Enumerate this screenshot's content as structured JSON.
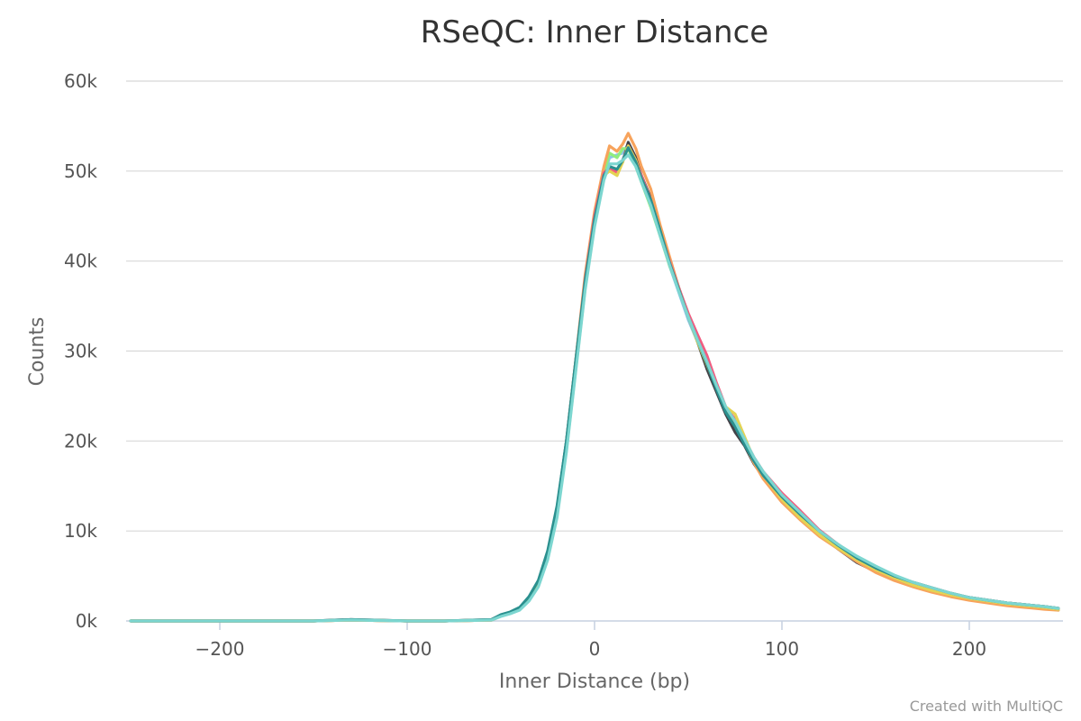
{
  "chart_data": {
    "type": "line",
    "title": "RSeQC: Inner Distance",
    "xlabel": "Inner Distance (bp)",
    "ylabel": "Counts",
    "xlim": [
      -250,
      250
    ],
    "ylim": [
      0,
      60000
    ],
    "x_ticks": [
      -200,
      -100,
      0,
      100,
      200
    ],
    "x_tick_labels": [
      "−200",
      "−100",
      "0",
      "100",
      "200"
    ],
    "y_ticks": [
      0,
      10000,
      20000,
      30000,
      40000,
      50000,
      60000
    ],
    "y_tick_labels": [
      "0k",
      "10k",
      "20k",
      "30k",
      "40k",
      "50k",
      "60k"
    ],
    "grid": true,
    "legend": "none",
    "credit": "Created with MultiQC",
    "series": [
      {
        "color": "#8cc4e8",
        "x": [
          -247.5,
          -200,
          -150,
          -130,
          -100,
          -80,
          -55,
          -50,
          -45,
          -40,
          -35,
          -30,
          -25,
          -20,
          -15,
          -10,
          -5,
          0,
          5,
          8,
          12,
          15,
          18,
          22,
          25,
          30,
          35,
          40,
          45,
          50,
          55,
          60,
          65,
          70,
          75,
          80,
          85,
          90,
          100,
          110,
          120,
          130,
          140,
          150,
          160,
          170,
          180,
          190,
          200,
          210,
          220,
          230,
          240,
          247.5
        ],
        "y": [
          0,
          0,
          0,
          100,
          0,
          0,
          100,
          600,
          900,
          1300,
          2400,
          4100,
          7200,
          12000,
          19500,
          28500,
          37500,
          44500,
          49500,
          51500,
          51800,
          52000,
          53000,
          51000,
          49000,
          46500,
          43000,
          39500,
          36500,
          33500,
          31000,
          28500,
          26000,
          23500,
          22000,
          20000,
          18000,
          16500,
          14000,
          12000,
          10000,
          8500,
          7000,
          6000,
          5000,
          4200,
          3600,
          3000,
          2500,
          2200,
          1900,
          1700,
          1500,
          1300
        ]
      },
      {
        "color": "#434348",
        "x": [
          -247.5,
          -200,
          -150,
          -130,
          -100,
          -80,
          -55,
          -50,
          -45,
          -40,
          -35,
          -30,
          -25,
          -20,
          -15,
          -10,
          -5,
          0,
          5,
          8,
          12,
          15,
          18,
          22,
          25,
          30,
          35,
          40,
          45,
          50,
          55,
          60,
          65,
          70,
          75,
          80,
          85,
          90,
          100,
          110,
          120,
          130,
          140,
          150,
          160,
          170,
          180,
          190,
          200,
          210,
          220,
          230,
          240,
          247.5
        ],
        "y": [
          0,
          0,
          0,
          150,
          0,
          0,
          150,
          650,
          950,
          1400,
          2500,
          4300,
          7500,
          12500,
          20000,
          29000,
          38000,
          45000,
          50000,
          50500,
          50000,
          51000,
          53200,
          51500,
          49500,
          47000,
          43500,
          40000,
          37000,
          34000,
          31000,
          28000,
          25500,
          23000,
          21000,
          19500,
          17500,
          16000,
          13500,
          11500,
          9800,
          8000,
          6500,
          5500,
          4800,
          4000,
          3500,
          3000,
          2600,
          2300,
          2000,
          1800,
          1600,
          1400
        ]
      },
      {
        "color": "#90ed7d",
        "x": [
          -247.5,
          -200,
          -150,
          -130,
          -100,
          -80,
          -55,
          -50,
          -45,
          -40,
          -35,
          -30,
          -25,
          -20,
          -15,
          -10,
          -5,
          0,
          5,
          8,
          12,
          15,
          18,
          22,
          25,
          30,
          35,
          40,
          45,
          50,
          55,
          60,
          65,
          70,
          75,
          80,
          85,
          90,
          100,
          110,
          120,
          130,
          140,
          150,
          160,
          170,
          180,
          190,
          200,
          210,
          220,
          230,
          240,
          247.5
        ],
        "y": [
          0,
          0,
          0,
          100,
          0,
          0,
          100,
          550,
          850,
          1250,
          2300,
          4000,
          7000,
          11800,
          19000,
          28000,
          37000,
          44000,
          49800,
          52000,
          51500,
          52500,
          52500,
          50500,
          48800,
          46000,
          42800,
          39500,
          36800,
          33800,
          31200,
          28800,
          26200,
          23600,
          22200,
          20000,
          17800,
          16200,
          13600,
          11600,
          9700,
          8200,
          6900,
          5800,
          4900,
          4100,
          3500,
          2900,
          2400,
          2100,
          1800,
          1600,
          1400,
          1200
        ]
      },
      {
        "color": "#f7a35c",
        "x": [
          -247.5,
          -200,
          -150,
          -130,
          -100,
          -80,
          -55,
          -50,
          -45,
          -40,
          -35,
          -30,
          -25,
          -20,
          -15,
          -10,
          -5,
          0,
          5,
          8,
          12,
          15,
          18,
          22,
          25,
          30,
          35,
          40,
          45,
          50,
          55,
          60,
          65,
          70,
          75,
          80,
          85,
          90,
          100,
          110,
          120,
          130,
          140,
          150,
          160,
          170,
          180,
          190,
          200,
          210,
          220,
          230,
          240,
          247.5
        ],
        "y": [
          0,
          0,
          0,
          100,
          0,
          0,
          100,
          600,
          900,
          1300,
          2400,
          4200,
          7300,
          12200,
          19800,
          29000,
          38500,
          45500,
          50500,
          52800,
          52200,
          53000,
          54200,
          52500,
          50500,
          48000,
          44000,
          40500,
          37000,
          34000,
          31500,
          29000,
          26000,
          23500,
          22000,
          19800,
          17600,
          15800,
          13200,
          11200,
          9400,
          8000,
          6600,
          5400,
          4500,
          3800,
          3200,
          2700,
          2300,
          2000,
          1700,
          1500,
          1300,
          1200
        ]
      },
      {
        "color": "#f15c80",
        "x": [
          -247.5,
          -200,
          -150,
          -130,
          -100,
          -80,
          -55,
          -50,
          -45,
          -40,
          -35,
          -30,
          -25,
          -20,
          -15,
          -10,
          -5,
          0,
          5,
          8,
          12,
          15,
          18,
          22,
          25,
          30,
          35,
          40,
          45,
          50,
          55,
          60,
          65,
          70,
          75,
          80,
          85,
          90,
          100,
          110,
          120,
          130,
          140,
          150,
          160,
          170,
          180,
          190,
          200,
          210,
          220,
          230,
          240,
          247.5
        ],
        "y": [
          0,
          0,
          0,
          100,
          0,
          0,
          100,
          600,
          900,
          1300,
          2400,
          4100,
          7200,
          12000,
          19500,
          28800,
          38000,
          45000,
          49800,
          50300,
          49800,
          51200,
          52800,
          51200,
          49500,
          46800,
          43200,
          40000,
          37000,
          34200,
          31800,
          29500,
          26500,
          23800,
          22400,
          20200,
          18200,
          16600,
          14200,
          12200,
          10100,
          8500,
          7000,
          5900,
          5000,
          4300,
          3700,
          3100,
          2600,
          2300,
          2000,
          1800,
          1600,
          1400
        ]
      },
      {
        "color": "#e4d354",
        "x": [
          -247.5,
          -200,
          -150,
          -130,
          -100,
          -80,
          -55,
          -50,
          -45,
          -40,
          -35,
          -30,
          -25,
          -20,
          -15,
          -10,
          -5,
          0,
          5,
          8,
          12,
          15,
          18,
          22,
          25,
          30,
          35,
          40,
          45,
          50,
          55,
          60,
          65,
          70,
          75,
          80,
          85,
          90,
          100,
          110,
          120,
          130,
          140,
          150,
          160,
          170,
          180,
          190,
          200,
          210,
          220,
          230,
          240,
          247.5
        ],
        "y": [
          0,
          0,
          0,
          100,
          0,
          0,
          100,
          550,
          850,
          1250,
          2300,
          4000,
          7000,
          11800,
          19200,
          28200,
          37200,
          44200,
          49500,
          50000,
          49500,
          51000,
          52800,
          51200,
          49200,
          46500,
          43000,
          39800,
          36800,
          33800,
          31000,
          28500,
          26000,
          23800,
          23000,
          20500,
          18000,
          16200,
          13500,
          11400,
          9600,
          8100,
          6800,
          5700,
          4800,
          4000,
          3400,
          2900,
          2500,
          2200,
          1900,
          1700,
          1500,
          1300
        ]
      },
      {
        "color": "#2b908f",
        "x": [
          -247.5,
          -200,
          -150,
          -130,
          -100,
          -80,
          -55,
          -50,
          -45,
          -40,
          -35,
          -30,
          -25,
          -20,
          -15,
          -10,
          -5,
          0,
          5,
          8,
          12,
          15,
          18,
          22,
          25,
          30,
          35,
          40,
          45,
          50,
          55,
          60,
          65,
          70,
          75,
          80,
          85,
          90,
          100,
          110,
          120,
          130,
          140,
          150,
          160,
          170,
          180,
          190,
          200,
          210,
          220,
          230,
          240,
          247.5
        ],
        "y": [
          0,
          0,
          0,
          150,
          0,
          0,
          150,
          700,
          1000,
          1500,
          2700,
          4500,
          7800,
          12800,
          20000,
          29000,
          37800,
          44600,
          49500,
          50500,
          50200,
          51200,
          52600,
          51000,
          49200,
          46800,
          43400,
          39800,
          36800,
          33800,
          31200,
          28600,
          25800,
          23200,
          21600,
          19600,
          17800,
          16200,
          13800,
          11800,
          10000,
          8400,
          7000,
          5900,
          5000,
          4300,
          3700,
          3100,
          2600,
          2300,
          2000,
          1800,
          1600,
          1400
        ]
      },
      {
        "color": "#7cd6d0",
        "x": [
          -247.5,
          -200,
          -150,
          -130,
          -100,
          -80,
          -55,
          -50,
          -45,
          -40,
          -35,
          -30,
          -25,
          -20,
          -15,
          -10,
          -5,
          0,
          5,
          8,
          12,
          15,
          18,
          22,
          25,
          30,
          35,
          40,
          45,
          50,
          55,
          60,
          65,
          70,
          75,
          80,
          85,
          90,
          100,
          110,
          120,
          130,
          140,
          150,
          160,
          170,
          180,
          190,
          200,
          210,
          220,
          230,
          240,
          247.5
        ],
        "y": [
          0,
          0,
          0,
          100,
          0,
          0,
          100,
          500,
          800,
          1200,
          2200,
          3800,
          6800,
          11500,
          18800,
          27800,
          36800,
          43800,
          49000,
          50800,
          50800,
          51200,
          51800,
          50500,
          48800,
          46200,
          42800,
          39600,
          36600,
          33800,
          31200,
          28800,
          26200,
          23800,
          22200,
          20200,
          18200,
          16600,
          14000,
          12000,
          10000,
          8500,
          7200,
          6100,
          5100,
          4300,
          3700,
          3100,
          2600,
          2300,
          2000,
          1800,
          1600,
          1400
        ]
      }
    ]
  }
}
